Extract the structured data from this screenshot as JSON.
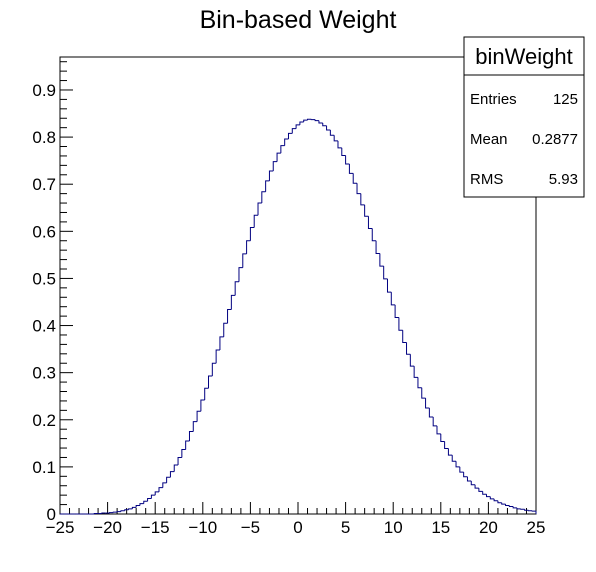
{
  "chart_data": {
    "type": "bar",
    "title": "Bin-based Weight",
    "xlabel": "",
    "ylabel": "",
    "xlim": [
      -25,
      25
    ],
    "ylim": [
      0,
      0.97
    ],
    "grid": false,
    "legend": "top-right",
    "x_ticks": [
      "−25",
      "−20",
      "−15",
      "−10",
      "−5",
      "0",
      "5",
      "10",
      "15",
      "20",
      "25"
    ],
    "y_ticks": [
      "0",
      "0.1",
      "0.2",
      "0.3",
      "0.4",
      "0.5",
      "0.6",
      "0.7",
      "0.8",
      "0.9"
    ],
    "histogram": {
      "bin_edges_range": [
        -25,
        25
      ],
      "bin_width": 0.4,
      "x": [
        -24.8,
        -24.4,
        -24.0,
        -23.6,
        -23.2,
        -22.8,
        -22.4,
        -22.0,
        -21.6,
        -21.2,
        -20.8,
        -20.4,
        -20.0,
        -19.6,
        -19.2,
        -18.8,
        -18.4,
        -18.0,
        -17.6,
        -17.2,
        -16.8,
        -16.4,
        -16.0,
        -15.6,
        -15.2,
        -14.8,
        -14.4,
        -14.0,
        -13.6,
        -13.2,
        -12.8,
        -12.4,
        -12.0,
        -11.6,
        -11.2,
        -10.8,
        -10.4,
        -10.0,
        -9.6,
        -9.2,
        -8.8,
        -8.4,
        -8.0,
        -7.6,
        -7.2,
        -6.8,
        -6.4,
        -6.0,
        -5.6,
        -5.2,
        -4.8,
        -4.4,
        -4.0,
        -3.6,
        -3.2,
        -2.8,
        -2.4,
        -2.0,
        -1.6,
        -1.2,
        -0.8,
        -0.4,
        0.0,
        0.4,
        0.8,
        1.2,
        1.6,
        2.0,
        2.4,
        2.8,
        3.2,
        3.6,
        4.0,
        4.4,
        4.8,
        5.2,
        5.6,
        6.0,
        6.4,
        6.8,
        7.2,
        7.6,
        8.0,
        8.4,
        8.8,
        9.2,
        9.6,
        10.0,
        10.4,
        10.8,
        11.2,
        11.6,
        12.0,
        12.4,
        12.8,
        13.2,
        13.6,
        14.0,
        14.4,
        14.8,
        15.2,
        15.6,
        16.0,
        16.4,
        16.8,
        17.2,
        17.6,
        18.0,
        18.4,
        18.8,
        19.2,
        19.6,
        20.0,
        20.4,
        20.8,
        21.2,
        21.6,
        22.0,
        22.4,
        22.8,
        23.2,
        23.6,
        24.0,
        24.4,
        24.8
      ],
      "values": [
        0.0,
        0.0,
        0.0,
        0.0,
        0.0,
        0.0,
        0.0,
        0.0,
        0.0,
        0.001,
        0.001,
        0.002,
        0.002,
        0.003,
        0.004,
        0.005,
        0.007,
        0.009,
        0.011,
        0.014,
        0.018,
        0.022,
        0.027,
        0.033,
        0.04,
        0.047,
        0.056,
        0.066,
        0.078,
        0.09,
        0.104,
        0.12,
        0.137,
        0.155,
        0.175,
        0.196,
        0.218,
        0.242,
        0.267,
        0.293,
        0.32,
        0.348,
        0.376,
        0.405,
        0.434,
        0.464,
        0.493,
        0.523,
        0.552,
        0.58,
        0.608,
        0.634,
        0.66,
        0.684,
        0.707,
        0.728,
        0.748,
        0.766,
        0.782,
        0.796,
        0.808,
        0.818,
        0.826,
        0.832,
        0.836,
        0.838,
        0.837,
        0.835,
        0.83,
        0.824,
        0.815,
        0.804,
        0.792,
        0.777,
        0.761,
        0.743,
        0.723,
        0.702,
        0.68,
        0.656,
        0.632,
        0.606,
        0.58,
        0.553,
        0.526,
        0.499,
        0.471,
        0.444,
        0.417,
        0.39,
        0.364,
        0.339,
        0.314,
        0.29,
        0.268,
        0.246,
        0.225,
        0.206,
        0.187,
        0.17,
        0.154,
        0.139,
        0.125,
        0.112,
        0.1,
        0.089,
        0.079,
        0.07,
        0.062,
        0.055,
        0.048,
        0.042,
        0.037,
        0.032,
        0.028,
        0.024,
        0.021,
        0.018,
        0.016,
        0.013,
        0.011,
        0.01,
        0.008,
        0.007,
        0.006
      ]
    },
    "stats_box": {
      "name": "binWeight",
      "entries_label": "Entries",
      "entries_value": "125",
      "mean_label": "Mean",
      "mean_value": "0.2877",
      "rms_label": "RMS",
      "rms_value": "5.93"
    },
    "line_color": "#000080"
  }
}
